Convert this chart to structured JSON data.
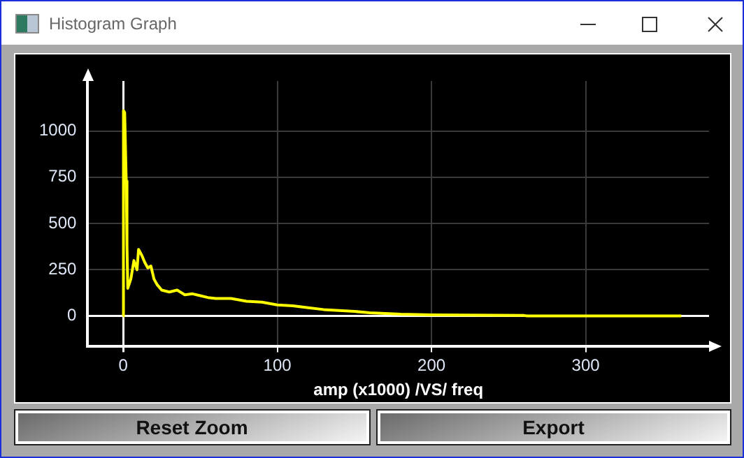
{
  "chart_data": {
    "type": "line",
    "title": "Histogram Graph",
    "xlabel": "amp (x1000) /VS/ freq",
    "x": [
      0,
      0.2,
      1,
      2,
      2.5,
      3,
      5,
      7,
      9,
      10,
      12,
      14,
      16,
      18,
      20,
      22,
      25,
      30,
      35,
      40,
      45,
      50,
      55,
      60,
      70,
      80,
      90,
      100,
      110,
      120,
      130,
      140,
      150,
      160,
      180,
      200,
      260,
      262,
      362
    ],
    "series": [
      {
        "color": "#ffff00",
        "values": [
          0,
          1110,
          1100,
          730,
          380,
          150,
          200,
          300,
          250,
          360,
          330,
          290,
          260,
          270,
          200,
          170,
          140,
          130,
          140,
          115,
          120,
          110,
          100,
          95,
          95,
          80,
          75,
          60,
          55,
          45,
          35,
          30,
          25,
          18,
          10,
          6,
          3,
          1,
          1
        ]
      }
    ],
    "xlim": [
      -23,
      380
    ],
    "xticks": [
      0,
      100,
      200,
      300
    ],
    "ylim": [
      -165,
      1270
    ],
    "yticks": [
      0,
      250,
      500,
      750,
      1000
    ],
    "grid": true,
    "legend": false,
    "marker": "none",
    "line_style": "solid",
    "annotations": [
      "Reset Zoom",
      "Export"
    ]
  }
}
